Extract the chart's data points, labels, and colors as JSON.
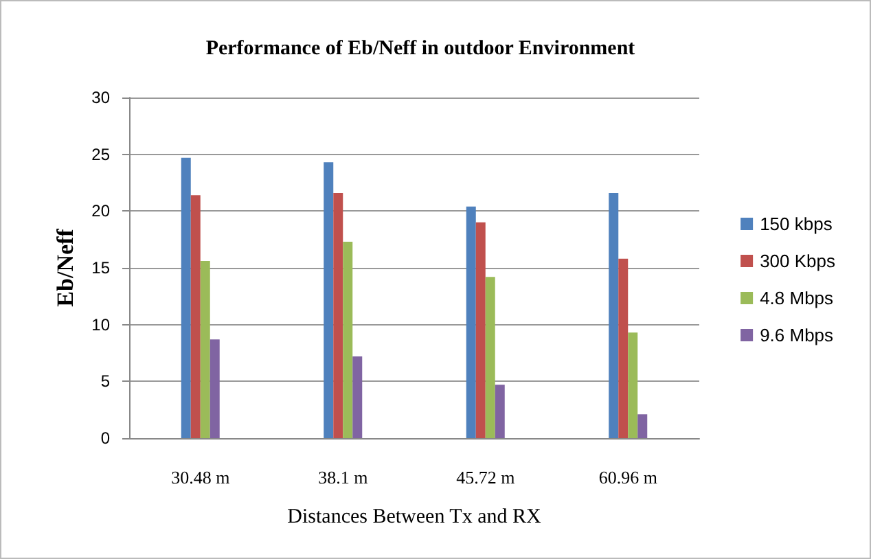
{
  "chart_data": {
    "type": "bar",
    "title": "Performance of Eb/Neff in outdoor Environment",
    "xlabel": "Distances Between Tx and RX",
    "ylabel": "Eb/Neff",
    "categories": [
      "30.48 m",
      "38.1 m",
      "45.72 m",
      "60.96 m"
    ],
    "series": [
      {
        "name": "150 kbps",
        "color": "#4f81bd",
        "values": [
          24.7,
          24.3,
          20.4,
          21.6
        ]
      },
      {
        "name": "300 Kbps",
        "color": "#c0504d",
        "values": [
          21.4,
          21.6,
          19.0,
          15.8
        ]
      },
      {
        "name": "4.8 Mbps",
        "color": "#9bbb59",
        "values": [
          15.6,
          17.3,
          14.2,
          9.3
        ]
      },
      {
        "name": "9.6 Mbps",
        "color": "#8064a2",
        "values": [
          8.7,
          7.2,
          4.7,
          2.1
        ]
      }
    ],
    "ylim": [
      0,
      30
    ],
    "yticks": [
      0,
      5,
      10,
      15,
      20,
      25,
      30
    ],
    "grid": "y",
    "legend": "right"
  }
}
